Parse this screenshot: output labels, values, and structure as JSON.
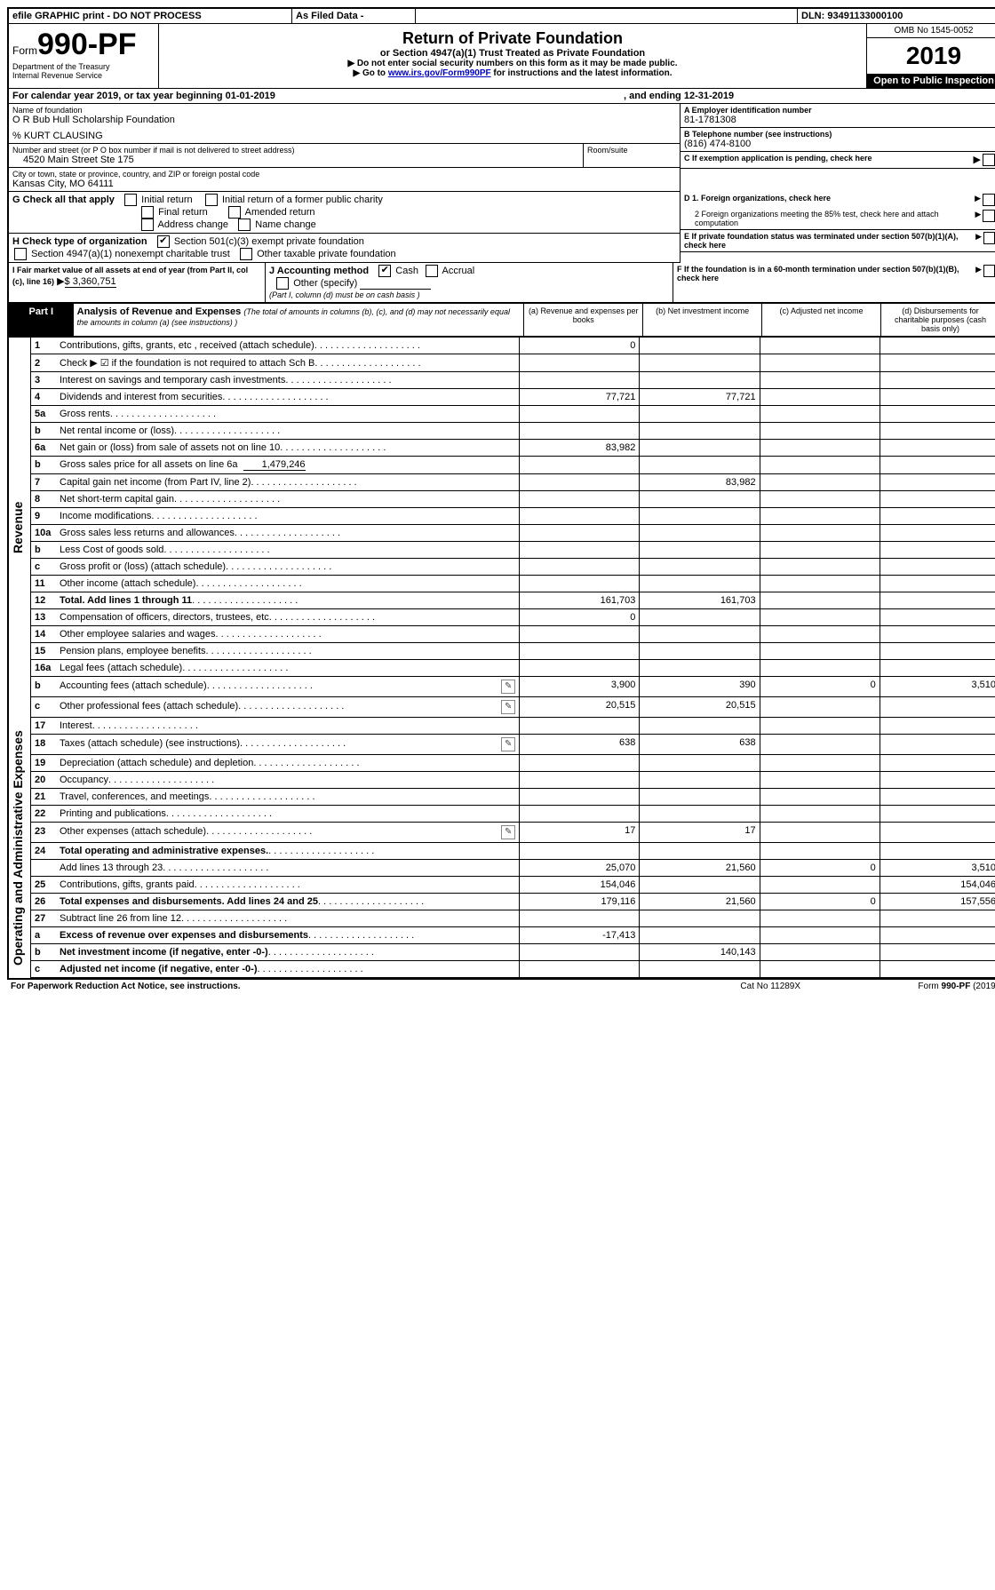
{
  "header": {
    "efile": "efile GRAPHIC print - DO NOT PROCESS",
    "asfiled": "As Filed Data -",
    "dln_label": "DLN:",
    "dln": "93491133000100",
    "form_prefix": "Form",
    "form_num": "990-PF",
    "dept": "Department of the Treasury",
    "irs": "Internal Revenue Service",
    "title": "Return of Private Foundation",
    "subtitle": "or Section 4947(a)(1) Trust Treated as Private Foundation",
    "note1": "Do not enter social security numbers on this form as it may be made public.",
    "note2_pre": "Go to ",
    "note2_link": "www.irs.gov/Form990PF",
    "note2_post": " for instructions and the latest information.",
    "omb": "OMB No 1545-0052",
    "year": "2019",
    "open": "Open to Public Inspection"
  },
  "calendar": {
    "text": "For calendar year 2019, or tax year beginning 01-01-2019",
    "ending": ", and ending 12-31-2019"
  },
  "entity": {
    "name_label": "Name of foundation",
    "name": "O R Bub Hull Scholarship Foundation",
    "care_of": "% KURT CLAUSING",
    "addr_label": "Number and street (or P O  box number if mail is not delivered to street address)",
    "addr": "4520 Main Street Ste 175",
    "room_label": "Room/suite",
    "city_label": "City or town, state or province, country, and ZIP or foreign postal code",
    "city": "Kansas City, MO  64111",
    "ein_label": "A Employer identification number",
    "ein": "81-1781308",
    "tel_label": "B Telephone number (see instructions)",
    "tel": "(816) 474-8100",
    "c_label": "C If exemption application is pending, check here"
  },
  "checks": {
    "g_label": "G Check all that apply",
    "g1": "Initial return",
    "g2": "Initial return of a former public charity",
    "g3": "Final return",
    "g4": "Amended return",
    "g5": "Address change",
    "g6": "Name change",
    "h_label": "H Check type of organization",
    "h1": "Section 501(c)(3) exempt private foundation",
    "h2": "Section 4947(a)(1) nonexempt charitable trust",
    "h3": "Other taxable private foundation",
    "d1": "D 1. Foreign organizations, check here",
    "d2": "2 Foreign organizations meeting the 85% test, check here and attach computation",
    "e": "E  If private foundation status was terminated under section 507(b)(1)(A), check here",
    "f": "F  If the foundation is in a 60-month termination under section 507(b)(1)(B), check here",
    "i_label": "I Fair market value of all assets at end of year (from Part II, col  (c), line 16)",
    "i_val": "$  3,360,751",
    "j_label": "J Accounting method",
    "j1": "Cash",
    "j2": "Accrual",
    "j3": "Other (specify)",
    "j_note": "(Part I, column (d) must be on cash basis )"
  },
  "part1": {
    "label": "Part I",
    "title": "Analysis of Revenue and Expenses",
    "title_note": "(The total of amounts in columns (b), (c), and (d) may not necessarily equal the amounts in column (a) (see instructions) )",
    "col_a": "(a)   Revenue and expenses per books",
    "col_b": "(b)  Net investment income",
    "col_c": "(c)  Adjusted net income",
    "col_d": "(d)  Disbursements for charitable purposes (cash basis only)"
  },
  "side_labels": {
    "revenue": "Revenue",
    "expenses": "Operating and Administrative Expenses"
  },
  "lines": {
    "1": {
      "n": "1",
      "t": "Contributions, gifts, grants, etc , received (attach schedule)",
      "a": "0"
    },
    "2": {
      "n": "2",
      "t": "Check ▶ ☑ if the foundation is not required to attach Sch B"
    },
    "3": {
      "n": "3",
      "t": "Interest on savings and temporary cash investments"
    },
    "4": {
      "n": "4",
      "t": "Dividends and interest from securities",
      "a": "77,721",
      "b": "77,721"
    },
    "5a": {
      "n": "5a",
      "t": "Gross rents"
    },
    "5b": {
      "n": "b",
      "t": "Net rental income or (loss)"
    },
    "6a": {
      "n": "6a",
      "t": "Net gain or (loss) from sale of assets not on line 10",
      "a": "83,982"
    },
    "6b": {
      "n": "b",
      "t": "Gross sales price for all assets on line 6a",
      "inline": "1,479,246"
    },
    "7": {
      "n": "7",
      "t": "Capital gain net income (from Part IV, line 2)",
      "b": "83,982"
    },
    "8": {
      "n": "8",
      "t": "Net short-term capital gain"
    },
    "9": {
      "n": "9",
      "t": "Income modifications"
    },
    "10a": {
      "n": "10a",
      "t": "Gross sales less returns and allowances"
    },
    "10b": {
      "n": "b",
      "t": "Less  Cost of goods sold"
    },
    "10c": {
      "n": "c",
      "t": "Gross profit or (loss) (attach schedule)"
    },
    "11": {
      "n": "11",
      "t": "Other income (attach schedule)"
    },
    "12": {
      "n": "12",
      "t": "Total. Add lines 1 through 11",
      "bold": true,
      "a": "161,703",
      "b": "161,703"
    },
    "13": {
      "n": "13",
      "t": "Compensation of officers, directors, trustees, etc",
      "a": "0"
    },
    "14": {
      "n": "14",
      "t": "Other employee salaries and wages"
    },
    "15": {
      "n": "15",
      "t": "Pension plans, employee benefits"
    },
    "16a": {
      "n": "16a",
      "t": "Legal fees (attach schedule)"
    },
    "16b": {
      "n": "b",
      "t": "Accounting fees (attach schedule)",
      "icon": true,
      "a": "3,900",
      "b": "390",
      "c": "0",
      "d": "3,510"
    },
    "16c": {
      "n": "c",
      "t": "Other professional fees (attach schedule)",
      "icon": true,
      "a": "20,515",
      "b": "20,515"
    },
    "17": {
      "n": "17",
      "t": "Interest"
    },
    "18": {
      "n": "18",
      "t": "Taxes (attach schedule) (see instructions)",
      "icon": true,
      "a": "638",
      "b": "638"
    },
    "19": {
      "n": "19",
      "t": "Depreciation (attach schedule) and depletion"
    },
    "20": {
      "n": "20",
      "t": "Occupancy"
    },
    "21": {
      "n": "21",
      "t": "Travel, conferences, and meetings"
    },
    "22": {
      "n": "22",
      "t": "Printing and publications"
    },
    "23": {
      "n": "23",
      "t": "Other expenses (attach schedule)",
      "icon": true,
      "a": "17",
      "b": "17"
    },
    "24": {
      "n": "24",
      "t": "Total operating and administrative expenses.",
      "bold": true
    },
    "24b": {
      "n": "",
      "t": "Add lines 13 through 23",
      "a": "25,070",
      "b": "21,560",
      "c": "0",
      "d": "3,510"
    },
    "25": {
      "n": "25",
      "t": "Contributions, gifts, grants paid",
      "a": "154,046",
      "d": "154,046"
    },
    "26": {
      "n": "26",
      "t": "Total expenses and disbursements. Add lines 24 and 25",
      "bold": true,
      "a": "179,116",
      "b": "21,560",
      "c": "0",
      "d": "157,556"
    },
    "27": {
      "n": "27",
      "t": "Subtract line 26 from line 12"
    },
    "27a": {
      "n": "a",
      "t": "Excess of revenue over expenses and disbursements",
      "bold": true,
      "a": "-17,413"
    },
    "27b": {
      "n": "b",
      "t": "Net investment income (if negative, enter -0-)",
      "bold": true,
      "b": "140,143"
    },
    "27c": {
      "n": "c",
      "t": "Adjusted net income (if negative, enter -0-)",
      "bold": true
    }
  },
  "footer": {
    "left": "For Paperwork Reduction Act Notice, see instructions.",
    "mid": "Cat  No  11289X",
    "right": "Form 990-PF (2019)"
  }
}
